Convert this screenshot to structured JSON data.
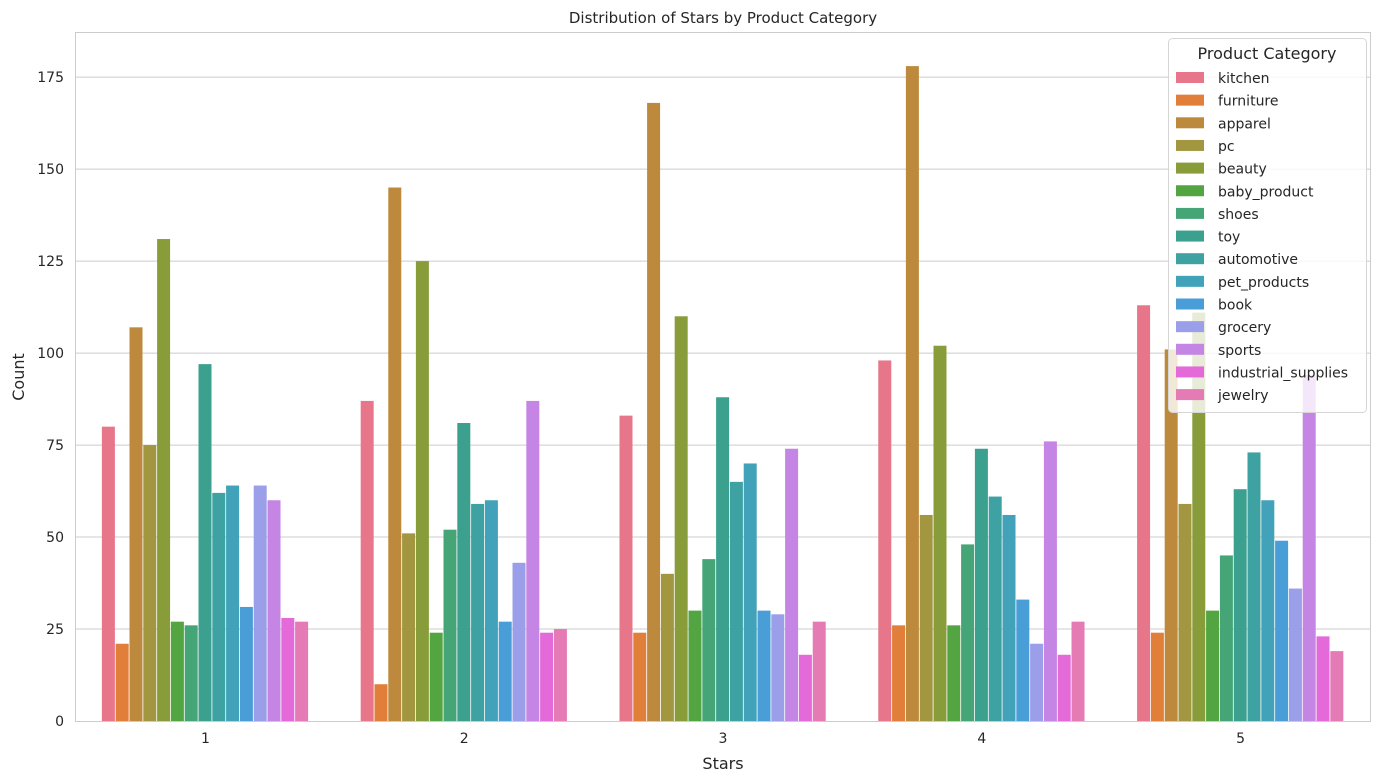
{
  "chart_data": {
    "type": "bar",
    "title": "Distribution of Stars by Product Category",
    "xlabel": "Stars",
    "ylabel": "Count",
    "categories": [
      "1",
      "2",
      "3",
      "4",
      "5"
    ],
    "ylim": [
      0,
      187
    ],
    "yticks": [
      0,
      25,
      50,
      75,
      100,
      125,
      150,
      175
    ],
    "grid": "horizontal",
    "legend": {
      "title": "Product Category",
      "placement": "top-right"
    },
    "series": [
      {
        "name": "kitchen",
        "color": "#e8768b",
        "values": [
          80,
          87,
          83,
          98,
          113
        ]
      },
      {
        "name": "furniture",
        "color": "#e17f3a",
        "values": [
          21,
          10,
          24,
          26,
          24
        ]
      },
      {
        "name": "apparel",
        "color": "#bd8a3d",
        "values": [
          107,
          145,
          168,
          178,
          101
        ]
      },
      {
        "name": "pc",
        "color": "#a39641",
        "values": [
          75,
          51,
          40,
          56,
          59
        ]
      },
      {
        "name": "beauty",
        "color": "#889d3a",
        "values": [
          131,
          125,
          110,
          102,
          111
        ]
      },
      {
        "name": "baby_product",
        "color": "#52a540",
        "values": [
          27,
          24,
          30,
          26,
          30
        ]
      },
      {
        "name": "shoes",
        "color": "#45a577",
        "values": [
          26,
          52,
          44,
          48,
          45
        ]
      },
      {
        "name": "toy",
        "color": "#3ba08e",
        "values": [
          97,
          81,
          88,
          74,
          63
        ]
      },
      {
        "name": "automotive",
        "color": "#3ea1a2",
        "values": [
          62,
          59,
          65,
          61,
          73
        ]
      },
      {
        "name": "pet_products",
        "color": "#42a2b9",
        "values": [
          64,
          60,
          70,
          56,
          60
        ]
      },
      {
        "name": "book",
        "color": "#4a9ed8",
        "values": [
          31,
          27,
          30,
          33,
          49
        ]
      },
      {
        "name": "grocery",
        "color": "#9b9ee9",
        "values": [
          64,
          43,
          29,
          21,
          36
        ]
      },
      {
        "name": "sports",
        "color": "#c585e4",
        "values": [
          60,
          87,
          74,
          76,
          94
        ]
      },
      {
        "name": "industrial_supplies",
        "color": "#e36ad8",
        "values": [
          28,
          24,
          18,
          18,
          23
        ]
      },
      {
        "name": "jewelry",
        "color": "#e57bb5",
        "values": [
          27,
          25,
          27,
          27,
          19
        ]
      }
    ]
  }
}
